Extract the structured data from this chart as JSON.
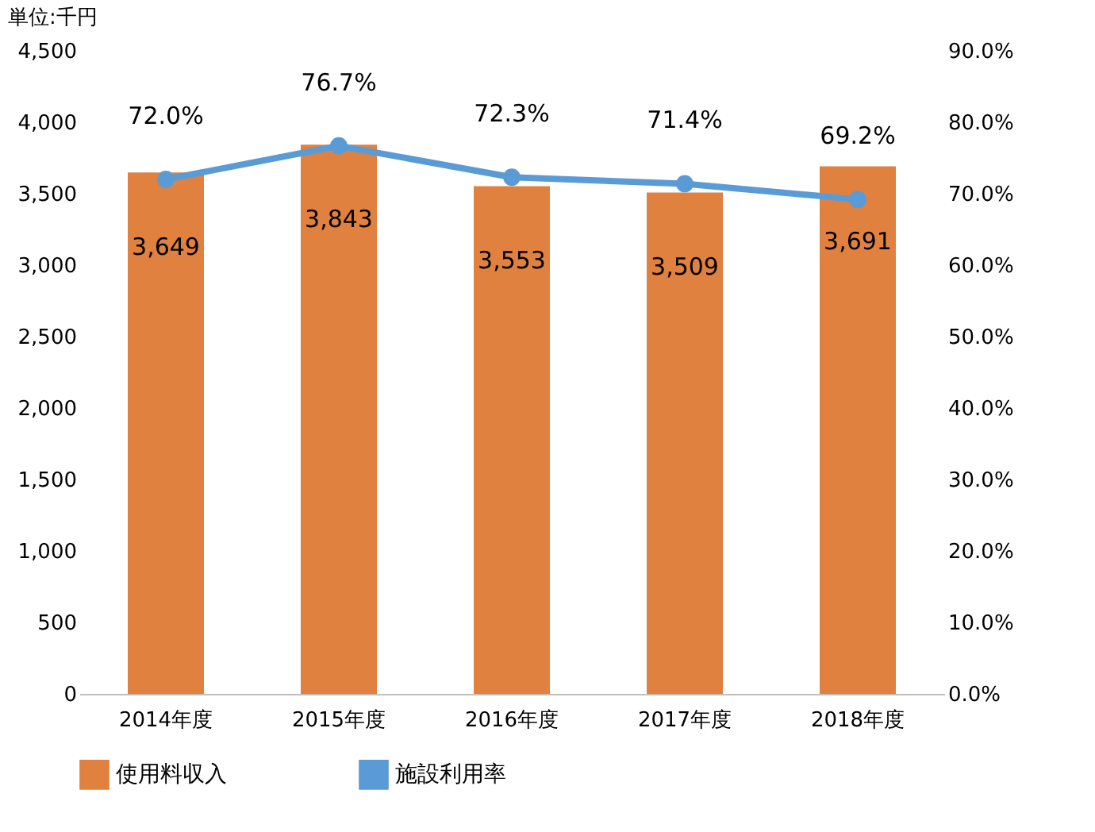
{
  "chart_data": {
    "type": "bar",
    "categories": [
      "2014年度",
      "2015年度",
      "2016年度",
      "2017年度",
      "2018年度"
    ],
    "annotations": [
      "単位:千円"
    ],
    "legend": "bottom",
    "grid": false,
    "ylim": [
      0,
      4500
    ],
    "yticks": [
      0,
      500,
      {
        "value": 1000,
        "label": "1,000"
      },
      {
        "value": 1500,
        "label": "1,500"
      },
      {
        "value": 2000,
        "label": "2,000"
      },
      {
        "value": 2500,
        "label": "2,500"
      },
      {
        "value": 3000,
        "label": "3,000"
      },
      {
        "value": 3500,
        "label": "3,500"
      },
      {
        "value": 4000,
        "label": "4,000"
      },
      {
        "value": 4500,
        "label": "4,500"
      }
    ],
    "y2lim": [
      0,
      90
    ],
    "y2ticks": [
      {
        "value": 0,
        "label": "0.0%"
      },
      {
        "value": 10,
        "label": "10.0%"
      },
      {
        "value": 20,
        "label": "20.0%"
      },
      {
        "value": 30,
        "label": "30.0%"
      },
      {
        "value": 40,
        "label": "40.0%"
      },
      {
        "value": 50,
        "label": "50.0%"
      },
      {
        "value": 60,
        "label": "60.0%"
      },
      {
        "value": 70,
        "label": "70.0%"
      },
      {
        "value": 80,
        "label": "80.0%"
      },
      {
        "value": 90,
        "label": "90.0%"
      }
    ],
    "series": [
      {
        "name": "使用料収入",
        "color": "#e0813f",
        "values": [
          3649,
          3843,
          3553,
          3509,
          3691
        ],
        "value_labels": [
          "3,649",
          "3,843",
          "3,553",
          "3,509",
          "3,691"
        ]
      },
      {
        "name": "施設利用率",
        "type": "line",
        "axis": "y2",
        "color": "#5b9bd5",
        "marker": "circle",
        "values": [
          72.0,
          76.7,
          72.3,
          71.4,
          69.2
        ],
        "value_labels": [
          "72.0%",
          "76.7%",
          "72.3%",
          "71.4%",
          "69.2%"
        ]
      }
    ]
  }
}
